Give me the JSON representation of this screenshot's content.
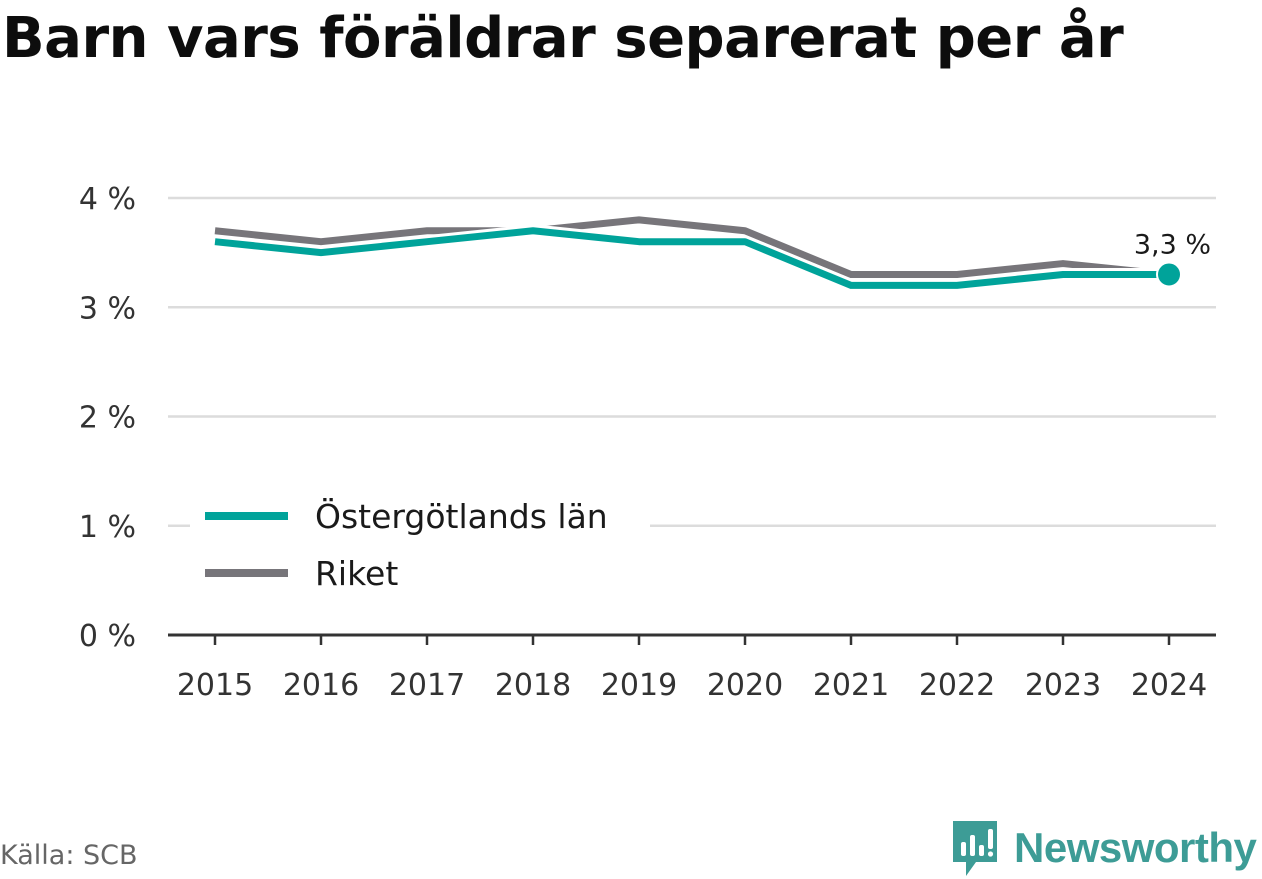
{
  "title": "Barn vars föräldrar separerat per år",
  "source": "Källa: SCB",
  "brand": {
    "name": "Newsworthy",
    "icon": "newsworthy-logo-icon",
    "color": "#3d9c96"
  },
  "chart_data": {
    "type": "line",
    "title": "Barn vars föräldrar separerat per år",
    "xlabel": "",
    "ylabel": "",
    "x": [
      "2015",
      "2016",
      "2017",
      "2018",
      "2019",
      "2020",
      "2021",
      "2022",
      "2023",
      "2024"
    ],
    "ylim": [
      0,
      4
    ],
    "yticks": [
      0,
      1,
      2,
      3,
      4
    ],
    "ytick_labels": [
      "0 %",
      "1 %",
      "2 %",
      "3 %",
      "4 %"
    ],
    "grid": true,
    "legend_position": "bottom-left",
    "series": [
      {
        "name": "Östergötlands län",
        "color": "#00a39a",
        "values": [
          3.6,
          3.5,
          3.6,
          3.7,
          3.6,
          3.6,
          3.2,
          3.2,
          3.3,
          3.3
        ]
      },
      {
        "name": "Riket",
        "color": "#77757a",
        "values": [
          3.7,
          3.6,
          3.7,
          3.7,
          3.8,
          3.7,
          3.3,
          3.3,
          3.4,
          3.3
        ]
      }
    ],
    "annotation": {
      "text": "3,3 %",
      "series": 0,
      "index": 9
    }
  }
}
